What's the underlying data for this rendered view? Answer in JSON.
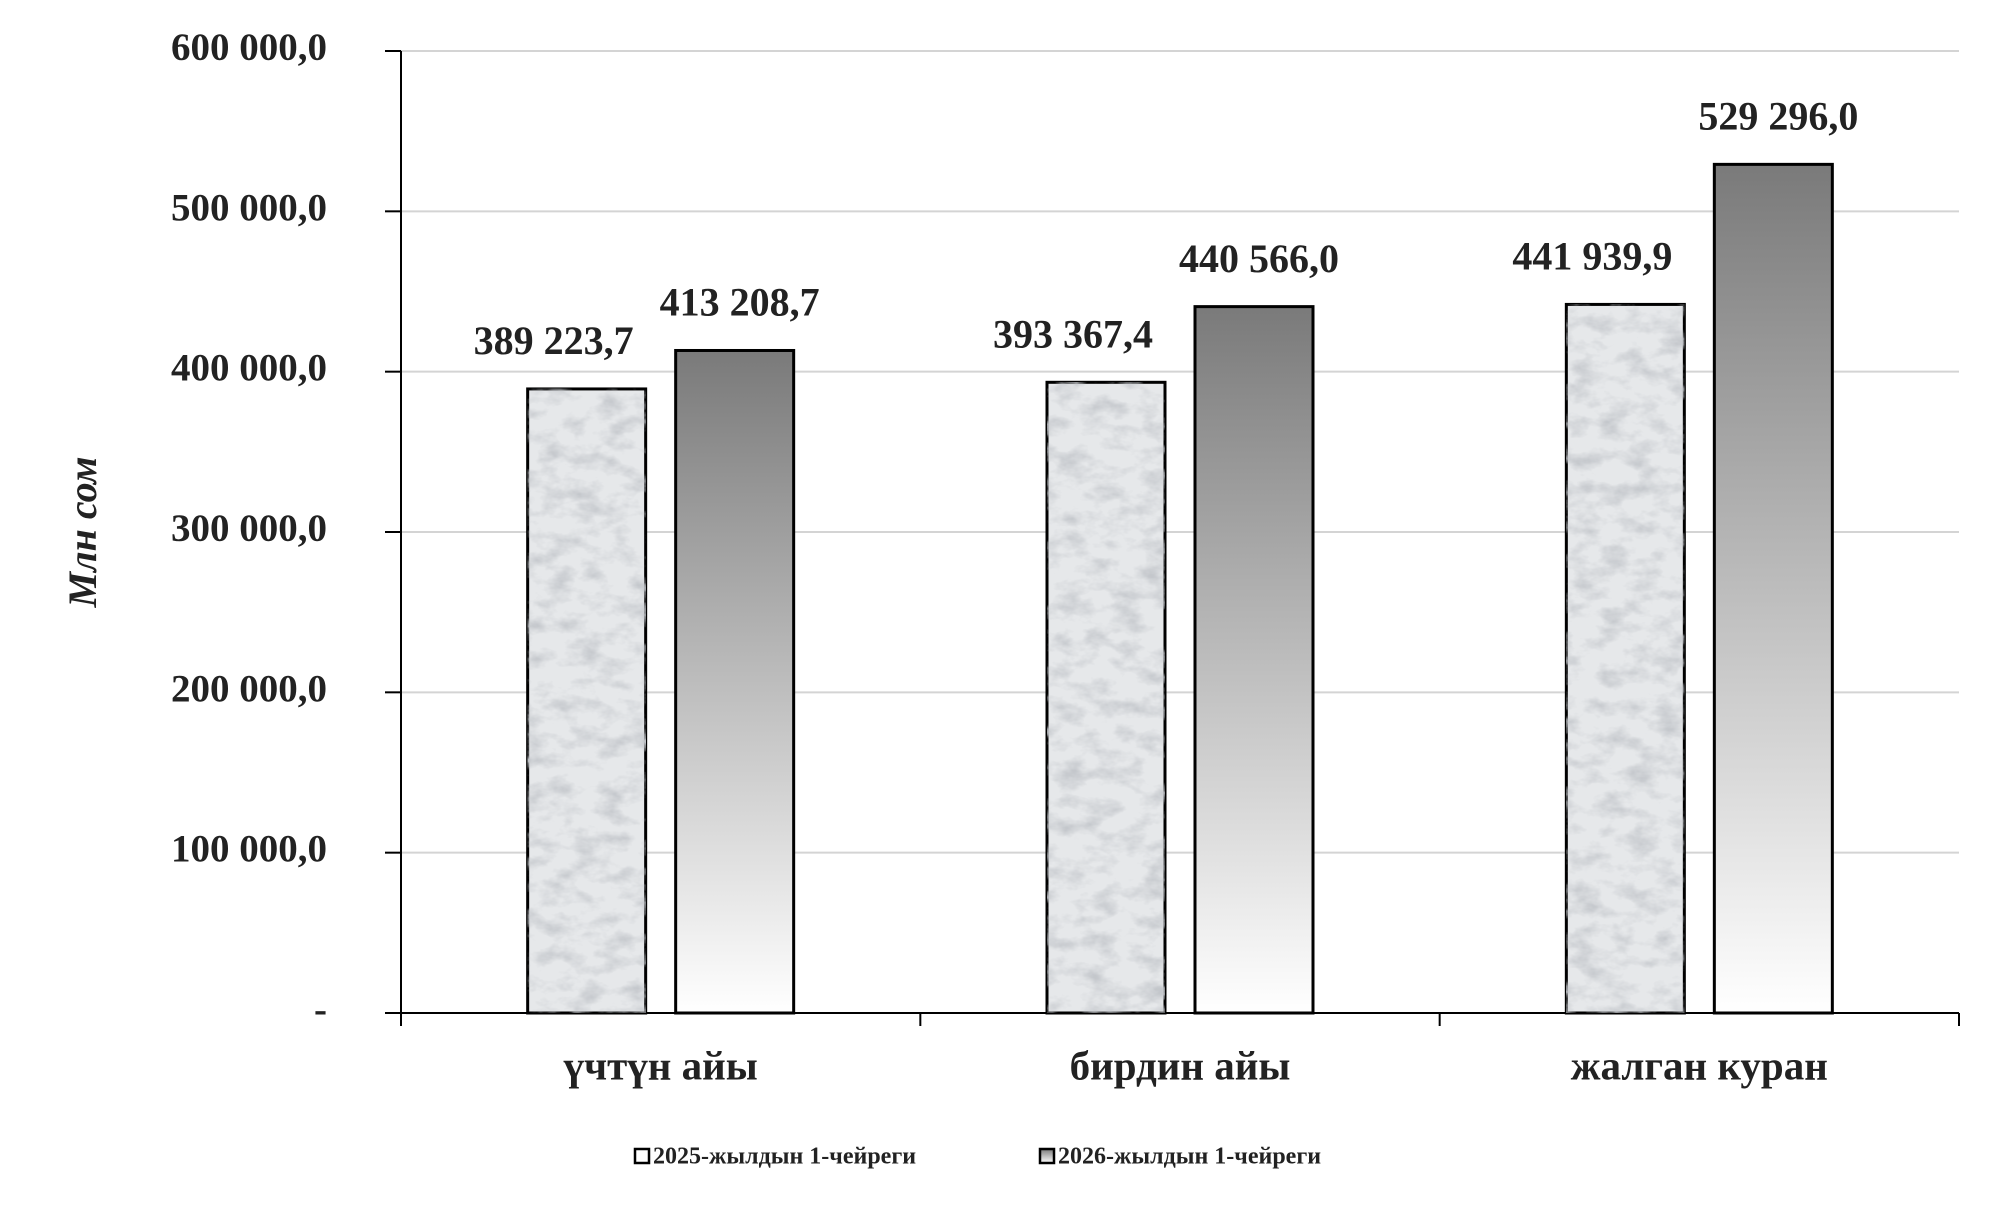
{
  "chart_data": {
    "type": "bar",
    "y_label": "Млн сом",
    "categories": [
      "үчтүн айы",
      "бирдин айы",
      "жалган куран"
    ],
    "series": [
      {
        "name": "2025-жылдын 1-чейреги",
        "color": "#e6e8ea",
        "values": [
          389223.7,
          393367.4,
          441939.9
        ],
        "value_labels": [
          "389 223,7",
          "393 367,4",
          "441 939,9"
        ]
      },
      {
        "name": "2026-жылдын 1-чейреги",
        "color": "#7a7a7a",
        "values": [
          413208.7,
          440566.0,
          529296.0
        ],
        "value_labels": [
          "413 208,7",
          "440 566,0",
          "529 296,0"
        ]
      }
    ],
    "ylim": [
      0,
      600000
    ],
    "yticks": [
      {
        "value": 0,
        "label": "-"
      },
      {
        "value": 100000,
        "label": "100 000,0"
      },
      {
        "value": 200000,
        "label": "200 000,0"
      },
      {
        "value": 300000,
        "label": "300 000,0"
      },
      {
        "value": 400000,
        "label": "400 000,0"
      },
      {
        "value": 500000,
        "label": "500 000,0"
      },
      {
        "value": 600000,
        "label": "600 000,0"
      }
    ],
    "grid": true
  }
}
